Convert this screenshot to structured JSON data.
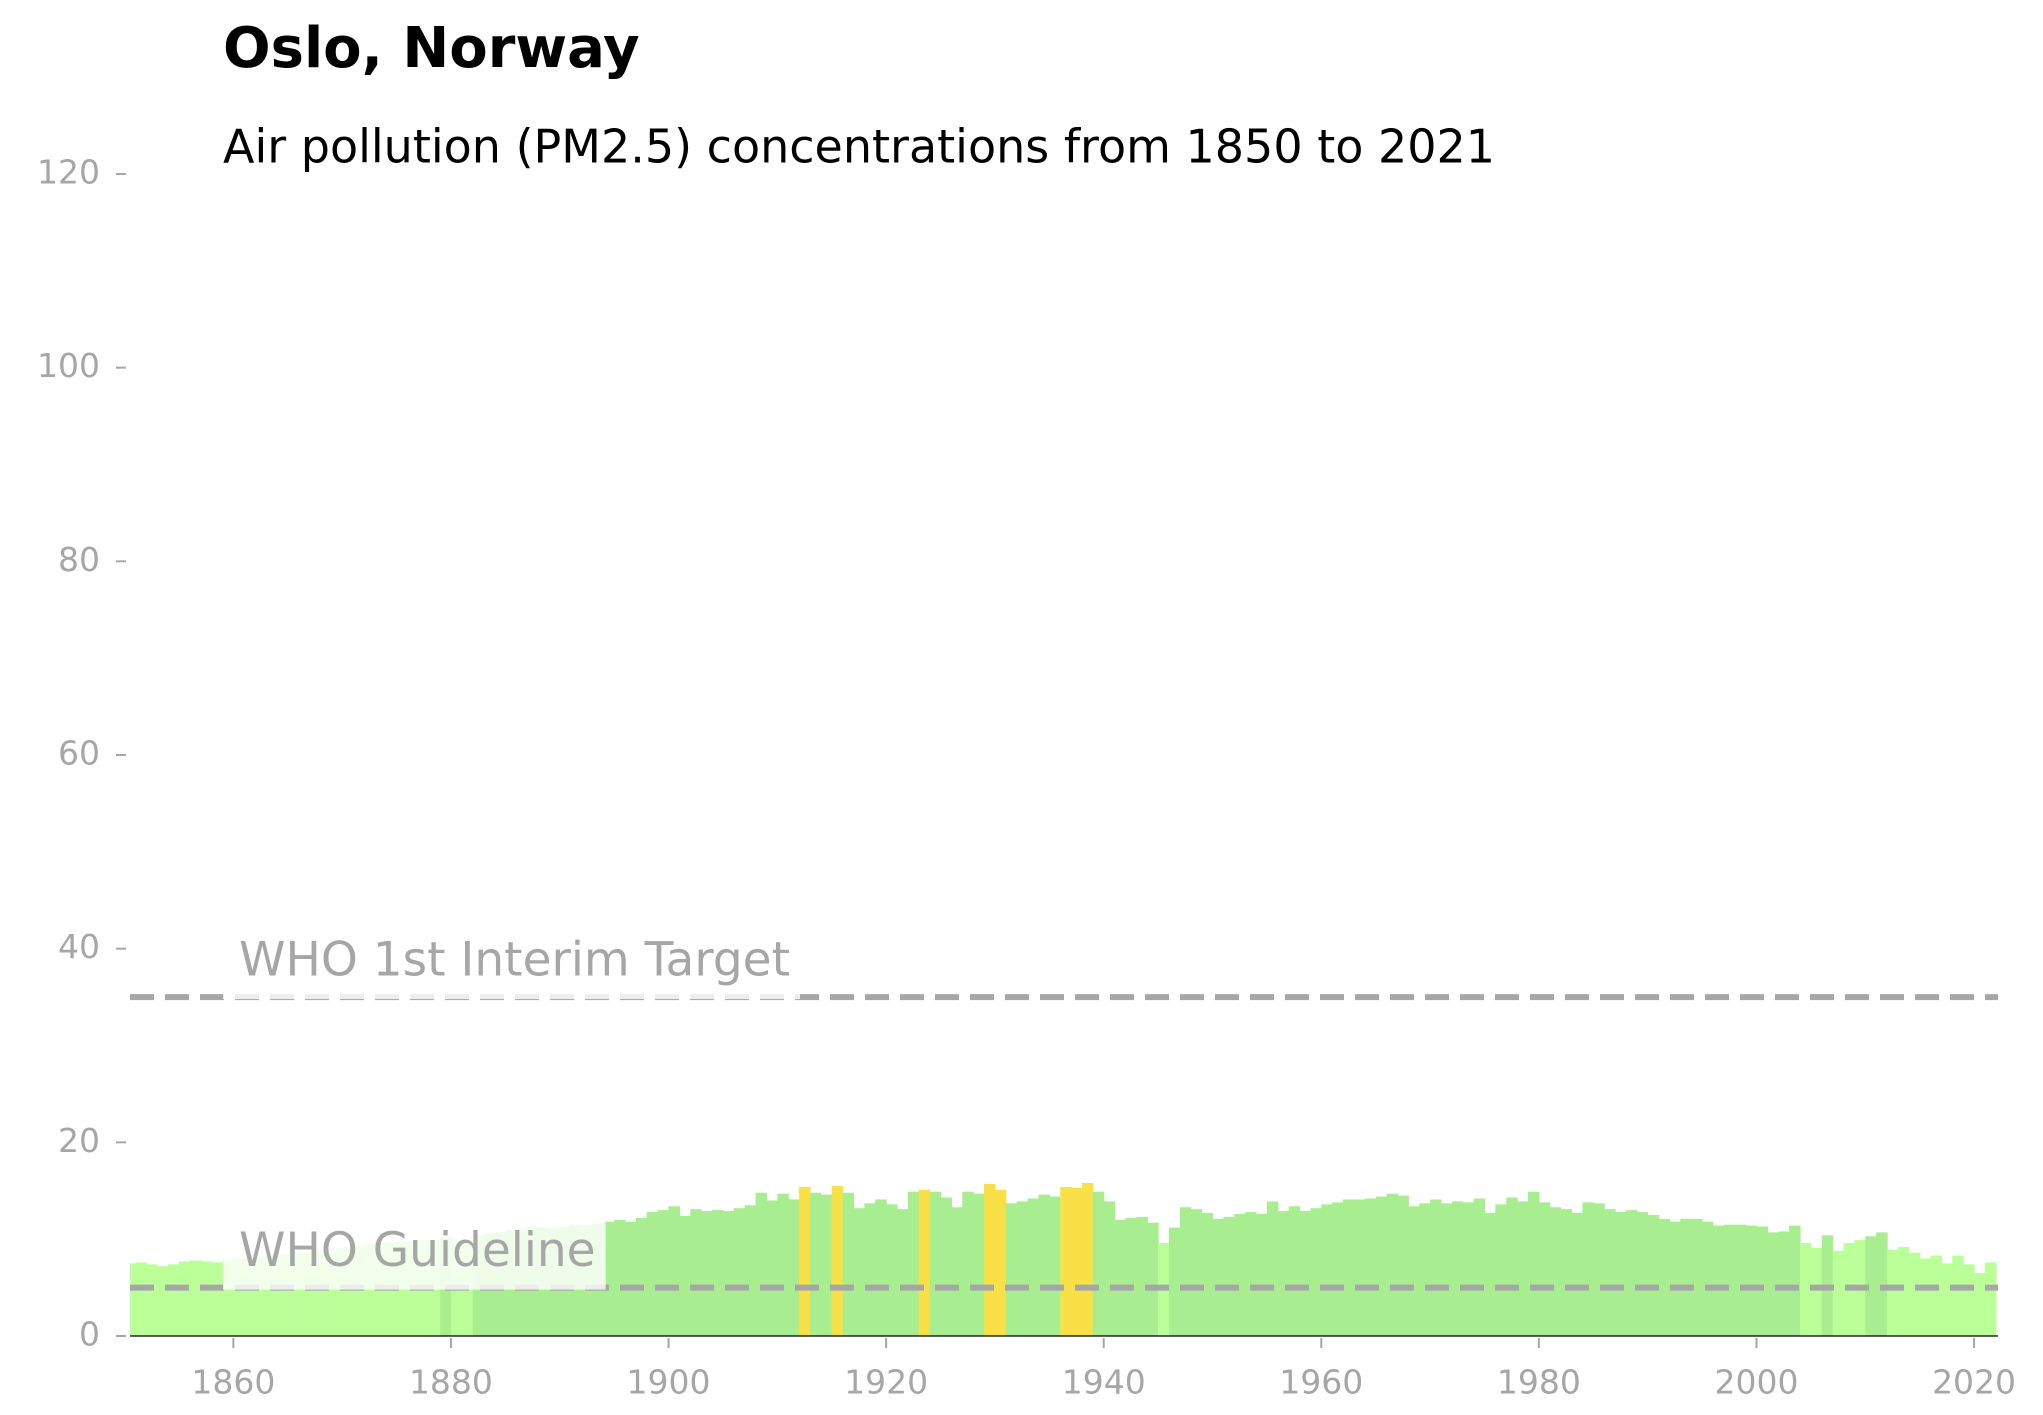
{
  "chart_data": {
    "type": "bar",
    "title": "Oslo, Norway",
    "subtitle": "Air pollution (PM2.5) concentrations from 1850 to 2021",
    "x": [
      1850,
      1851,
      1852,
      1853,
      1854,
      1855,
      1856,
      1857,
      1858,
      1859,
      1860,
      1861,
      1862,
      1863,
      1864,
      1865,
      1866,
      1867,
      1868,
      1869,
      1870,
      1871,
      1872,
      1873,
      1874,
      1875,
      1876,
      1877,
      1878,
      1879,
      1880,
      1881,
      1882,
      1883,
      1884,
      1885,
      1886,
      1887,
      1888,
      1889,
      1890,
      1891,
      1892,
      1893,
      1894,
      1895,
      1896,
      1897,
      1898,
      1899,
      1900,
      1901,
      1902,
      1903,
      1904,
      1905,
      1906,
      1907,
      1908,
      1909,
      1910,
      1911,
      1912,
      1913,
      1914,
      1915,
      1916,
      1917,
      1918,
      1919,
      1920,
      1921,
      1922,
      1923,
      1924,
      1925,
      1926,
      1927,
      1928,
      1929,
      1930,
      1931,
      1932,
      1933,
      1934,
      1935,
      1936,
      1937,
      1938,
      1939,
      1940,
      1941,
      1942,
      1943,
      1944,
      1945,
      1946,
      1947,
      1948,
      1949,
      1950,
      1951,
      1952,
      1953,
      1954,
      1955,
      1956,
      1957,
      1958,
      1959,
      1960,
      1961,
      1962,
      1963,
      1964,
      1965,
      1966,
      1967,
      1968,
      1969,
      1970,
      1971,
      1972,
      1973,
      1974,
      1975,
      1976,
      1977,
      1978,
      1979,
      1980,
      1981,
      1982,
      1983,
      1984,
      1985,
      1986,
      1987,
      1988,
      1989,
      1990,
      1991,
      1992,
      1993,
      1994,
      1995,
      1996,
      1997,
      1998,
      1999,
      2000,
      2001,
      2002,
      2003,
      2004,
      2005,
      2006,
      2007,
      2008,
      2009,
      2010,
      2011,
      2012,
      2013,
      2014,
      2015,
      2016,
      2017,
      2018,
      2019,
      2020,
      2021
    ],
    "values": [
      7.5,
      7.6,
      7.4,
      7.2,
      7.4,
      7.7,
      7.8,
      7.7,
      7.6,
      7.8,
      8,
      8,
      8.2,
      8.3,
      8.5,
      8.5,
      8.7,
      8.8,
      9,
      9,
      9.2,
      9.3,
      9.5,
      9.6,
      9.7,
      9.8,
      9.8,
      9.9,
      9.9,
      10.2,
      9.9,
      9.9,
      10.4,
      10.6,
      10.7,
      10.9,
      11,
      11.3,
      11.2,
      11.1,
      11.3,
      11.5,
      11.4,
      11.6,
      11.8,
      12,
      11.8,
      12.2,
      12.8,
      13,
      13.4,
      12.4,
      13.1,
      12.9,
      13,
      12.9,
      13.2,
      13.5,
      14.8,
      14,
      14.7,
      14.1,
      15.4,
      14.8,
      14.6,
      15.5,
      14.8,
      13.2,
      13.7,
      14.1,
      13.6,
      13.1,
      14.9,
      15.1,
      14.9,
      14.3,
      13.3,
      14.9,
      14.7,
      15.7,
      15.1,
      13.7,
      13.9,
      14.2,
      14.6,
      14.4,
      15.4,
      15.3,
      15.8,
      14.9,
      13.9,
      12,
      12.2,
      12.3,
      11.7,
      9.6,
      11.2,
      13.3,
      13.1,
      12.7,
      12.1,
      12.3,
      12.6,
      12.8,
      12.6,
      13.9,
      12.9,
      13.4,
      12.9,
      13.2,
      13.6,
      13.8,
      14.1,
      14.1,
      14.2,
      14.4,
      14.7,
      14.5,
      13.4,
      13.7,
      14.1,
      13.7,
      13.9,
      13.8,
      14.2,
      12.7,
      13.6,
      14.3,
      13.9,
      14.9,
      13.8,
      13.3,
      13.1,
      12.7,
      13.8,
      13.7,
      13.1,
      12.8,
      13,
      12.8,
      12.5,
      12.1,
      11.8,
      12.1,
      12.1,
      11.8,
      11.4,
      11.5,
      11.5,
      11.4,
      11.3,
      10.7,
      10.8,
      11.4,
      9.6,
      9.1,
      10.4,
      8.8,
      9.6,
      9.9,
      10.3,
      10.7,
      8.9,
      9.2,
      8.6,
      8,
      8.3,
      7.5,
      8.3,
      7.4,
      6.5,
      7.6
    ],
    "colors": [
      "#bbff99",
      "#bbff99",
      "#bbff99",
      "#bbff99",
      "#bbff99",
      "#bbff99",
      "#bbff99",
      "#bbff99",
      "#bbff99",
      "#bbff99",
      "#bbff99",
      "#bbff99",
      "#bbff99",
      "#bbff99",
      "#bbff99",
      "#bbff99",
      "#bbff99",
      "#bbff99",
      "#bbff99",
      "#bbff99",
      "#bbff99",
      "#bbff99",
      "#bbff99",
      "#bbff99",
      "#bbff99",
      "#bbff99",
      "#bbff99",
      "#bbff99",
      "#bbff99",
      "#a8ee90",
      "#bbff99",
      "#bbff99",
      "#a8ee90",
      "#a8ee90",
      "#a8ee90",
      "#a8ee90",
      "#a8ee90",
      "#a8ee90",
      "#a8ee90",
      "#a8ee90",
      "#a8ee90",
      "#a8ee90",
      "#a8ee90",
      "#a8ee90",
      "#a8ee90",
      "#a8ee90",
      "#a8ee90",
      "#a8ee90",
      "#a8ee90",
      "#a8ee90",
      "#a8ee90",
      "#a8ee90",
      "#a8ee90",
      "#a8ee90",
      "#a8ee90",
      "#a8ee90",
      "#a8ee90",
      "#a8ee90",
      "#a8ee90",
      "#a8ee90",
      "#a8ee90",
      "#a8ee90",
      "#f9e046",
      "#a8ee90",
      "#a8ee90",
      "#f9e046",
      "#a8ee90",
      "#a8ee90",
      "#a8ee90",
      "#a8ee90",
      "#a8ee90",
      "#a8ee90",
      "#a8ee90",
      "#f9e046",
      "#a8ee90",
      "#a8ee90",
      "#a8ee90",
      "#a8ee90",
      "#a8ee90",
      "#f9e046",
      "#f9e046",
      "#a8ee90",
      "#a8ee90",
      "#a8ee90",
      "#a8ee90",
      "#a8ee90",
      "#f9e046",
      "#f9e046",
      "#f9e046",
      "#a8ee90",
      "#a8ee90",
      "#a8ee90",
      "#a8ee90",
      "#a8ee90",
      "#a8ee90",
      "#bbff99",
      "#a8ee90",
      "#a8ee90",
      "#a8ee90",
      "#a8ee90",
      "#a8ee90",
      "#a8ee90",
      "#a8ee90",
      "#a8ee90",
      "#a8ee90",
      "#a8ee90",
      "#a8ee90",
      "#a8ee90",
      "#a8ee90",
      "#a8ee90",
      "#a8ee90",
      "#a8ee90",
      "#a8ee90",
      "#a8ee90",
      "#a8ee90",
      "#a8ee90",
      "#a8ee90",
      "#a8ee90",
      "#a8ee90",
      "#a8ee90",
      "#a8ee90",
      "#a8ee90",
      "#a8ee90",
      "#a8ee90",
      "#a8ee90",
      "#a8ee90",
      "#a8ee90",
      "#a8ee90",
      "#a8ee90",
      "#a8ee90",
      "#a8ee90",
      "#a8ee90",
      "#a8ee90",
      "#a8ee90",
      "#a8ee90",
      "#a8ee90",
      "#a8ee90",
      "#a8ee90",
      "#a8ee90",
      "#a8ee90",
      "#a8ee90",
      "#a8ee90",
      "#a8ee90",
      "#a8ee90",
      "#a8ee90",
      "#a8ee90",
      "#a8ee90",
      "#a8ee90",
      "#a8ee90",
      "#a8ee90",
      "#a8ee90",
      "#a8ee90",
      "#a8ee90",
      "#a8ee90",
      "#bbff99",
      "#bbff99",
      "#a8ee90",
      "#bbff99",
      "#bbff99",
      "#bbff99",
      "#a8ee90",
      "#a8ee90",
      "#bbff99",
      "#bbff99",
      "#bbff99",
      "#bbff99",
      "#bbff99",
      "#bbff99",
      "#bbff99",
      "#bbff99",
      "#bbff99",
      "#bbff99"
    ],
    "xlim": [
      1850.5,
      2022.2
    ],
    "xticks": [
      1860,
      1880,
      1900,
      1920,
      1940,
      1960,
      1980,
      2000,
      2020
    ],
    "ylim": [
      0,
      120
    ],
    "yticks": [
      0,
      20,
      40,
      60,
      80,
      100,
      120
    ],
    "reference_lines": [
      {
        "value": 35,
        "label": "WHO 1st Interim Target"
      },
      {
        "value": 5,
        "label": "WHO Guideline"
      }
    ]
  }
}
